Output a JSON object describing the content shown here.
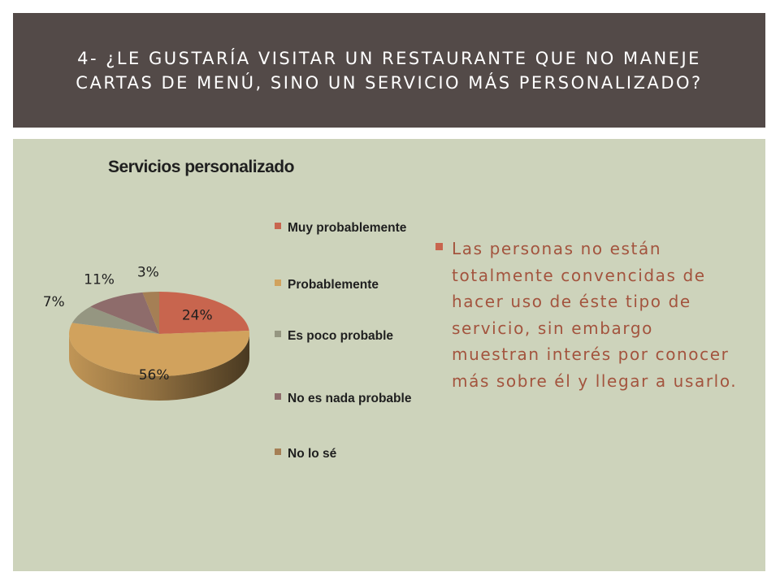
{
  "slide": {
    "title": "4- ¿Le gustaría visitar un restaurante que no maneje\ncartas de menú, sino un servicio más personalizado?",
    "bullet": "Las personas no están totalmente convencidas de hacer uso de éste tipo de servicio, sin embargo muestran interés por conocer más sobre él y llegar a usarlo."
  },
  "colors": {
    "title_bg": "#534a48",
    "content_bg": "#cdd3bb",
    "accent": "#c8654e",
    "bullet_text": "#a3543e"
  },
  "chart_data": {
    "type": "pie",
    "style": "3d",
    "title": "Servicios personalizado",
    "legend_position": "right",
    "categories": [
      "Muy probablemente",
      "Probablemente",
      "Es poco probable",
      "No es nada probable",
      "No lo sé"
    ],
    "values": [
      24,
      56,
      7,
      11,
      3
    ],
    "value_labels": [
      "24%",
      "56%",
      "7%",
      "11%",
      "3%"
    ],
    "colors": [
      "#c8654e",
      "#d1a25d",
      "#959681",
      "#8e6c6b",
      "#a57f55"
    ]
  }
}
